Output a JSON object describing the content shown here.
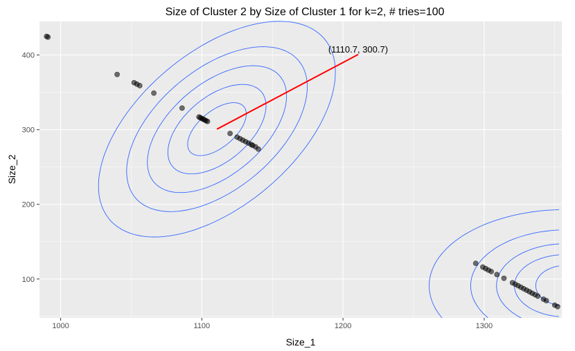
{
  "chart_data": {
    "type": "scatter",
    "title": "Size of Cluster 2 by Size of Cluster 1 for k=2, # tries=100",
    "xlabel": "Size_1",
    "ylabel": "Size_2",
    "xlim": [
      985,
      1355
    ],
    "ylim": [
      48,
      445
    ],
    "x_ticks": [
      1000,
      1100,
      1200,
      1300
    ],
    "y_ticks": [
      100,
      200,
      300,
      400
    ],
    "grid": true,
    "background": "#ebebeb",
    "points": [
      {
        "x": 990,
        "y": 425
      },
      {
        "x": 991,
        "y": 424
      },
      {
        "x": 1040,
        "y": 374
      },
      {
        "x": 1052,
        "y": 363
      },
      {
        "x": 1054,
        "y": 361
      },
      {
        "x": 1056,
        "y": 359
      },
      {
        "x": 1066,
        "y": 349
      },
      {
        "x": 1086,
        "y": 329
      },
      {
        "x": 1098,
        "y": 317
      },
      {
        "x": 1099,
        "y": 316
      },
      {
        "x": 1100,
        "y": 315
      },
      {
        "x": 1101,
        "y": 314
      },
      {
        "x": 1102,
        "y": 313
      },
      {
        "x": 1103,
        "y": 312
      },
      {
        "x": 1104,
        "y": 311
      },
      {
        "x": 1120,
        "y": 295
      },
      {
        "x": 1125,
        "y": 290
      },
      {
        "x": 1127,
        "y": 288
      },
      {
        "x": 1129,
        "y": 286
      },
      {
        "x": 1131,
        "y": 284
      },
      {
        "x": 1133,
        "y": 282
      },
      {
        "x": 1135,
        "y": 280
      },
      {
        "x": 1136,
        "y": 279
      },
      {
        "x": 1138,
        "y": 277
      },
      {
        "x": 1140,
        "y": 274
      },
      {
        "x": 1294,
        "y": 121
      },
      {
        "x": 1299,
        "y": 116
      },
      {
        "x": 1301,
        "y": 114
      },
      {
        "x": 1303,
        "y": 112
      },
      {
        "x": 1305,
        "y": 110
      },
      {
        "x": 1309,
        "y": 106
      },
      {
        "x": 1314,
        "y": 101
      },
      {
        "x": 1320,
        "y": 95
      },
      {
        "x": 1322,
        "y": 93
      },
      {
        "x": 1324,
        "y": 91
      },
      {
        "x": 1326,
        "y": 89
      },
      {
        "x": 1328,
        "y": 87
      },
      {
        "x": 1330,
        "y": 85
      },
      {
        "x": 1332,
        "y": 83
      },
      {
        "x": 1334,
        "y": 81
      },
      {
        "x": 1336,
        "y": 79
      },
      {
        "x": 1338,
        "y": 77
      },
      {
        "x": 1342,
        "y": 73
      },
      {
        "x": 1344,
        "y": 71
      },
      {
        "x": 1350,
        "y": 65
      },
      {
        "x": 1352,
        "y": 63
      }
    ],
    "point_color": "#000000",
    "contours": [
      {
        "color": "#3366ff",
        "center": [
          1110.7,
          300.7
        ],
        "rings": [
          {
            "rx": 26,
            "ry": 23,
            "rot": -0.7
          },
          {
            "rx": 43,
            "ry": 41,
            "rot": -0.7
          },
          {
            "rx": 61,
            "ry": 58,
            "rot": -0.7
          },
          {
            "rx": 79,
            "ry": 76,
            "rot": -0.7
          },
          {
            "rx": 104,
            "ry": 98,
            "rot": -0.7
          }
        ]
      },
      {
        "color": "#3366ff",
        "center": [
          1358,
          91
        ],
        "clip_x": [
          1230,
          1353
        ],
        "rings": [
          {
            "rx": 27,
            "ry": 28,
            "rot": 0
          },
          {
            "rx": 46,
            "ry": 43,
            "rot": 0
          },
          {
            "rx": 62,
            "ry": 58,
            "rot": 0
          },
          {
            "rx": 85,
            "ry": 77,
            "rot": 0
          },
          {
            "rx": 122,
            "ry": 105,
            "rot": 0
          }
        ]
      }
    ],
    "arrow": {
      "from": [
        1110.7,
        300.7
      ],
      "to": [
        1210.7,
        400.7
      ],
      "color": "#ff0000",
      "label": "(1110.7, 300.7)"
    }
  }
}
